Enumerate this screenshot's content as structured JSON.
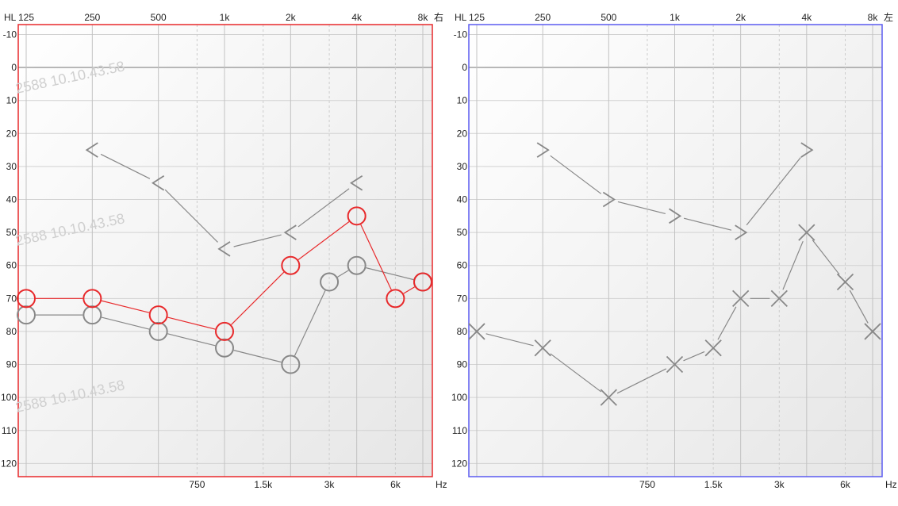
{
  "chart_data": [
    {
      "type": "line",
      "side_label": "右",
      "frame_color": "#e8292b",
      "y_axis_label": "HL",
      "x_unit": "Hz",
      "top_ticks": [
        125,
        250,
        500,
        1000,
        2000,
        4000,
        8000
      ],
      "top_tick_labels": [
        "125",
        "250",
        "500",
        "1k",
        "2k",
        "4k",
        "8k"
      ],
      "bottom_ticks": [
        750,
        1500,
        3000,
        6000
      ],
      "bottom_tick_labels": [
        "750",
        "1.5k",
        "3k",
        "6k"
      ],
      "y_ticks": [
        -10,
        0,
        10,
        20,
        30,
        40,
        50,
        60,
        70,
        80,
        90,
        100,
        110,
        120
      ],
      "y_tick_labels": [
        "-10",
        "0",
        "10",
        "20",
        "30",
        "40",
        "50",
        "60",
        "70",
        "80",
        "90",
        "100",
        "110",
        "120"
      ],
      "ylim": [
        -13,
        124
      ],
      "y_inverted": true,
      "watermark": "2588 10.10.43.58",
      "series": [
        {
          "marker": "bone-right",
          "color": "#888888",
          "points": [
            [
              250,
              25
            ],
            [
              500,
              35
            ],
            [
              1000,
              55
            ],
            [
              2000,
              50
            ],
            [
              4000,
              35
            ]
          ]
        },
        {
          "marker": "circle",
          "color": "#888888",
          "points": [
            [
              125,
              75
            ],
            [
              250,
              75
            ],
            [
              500,
              80
            ],
            [
              1000,
              85
            ],
            [
              2000,
              90
            ],
            [
              3000,
              65
            ],
            [
              4000,
              60
            ],
            [
              8000,
              65
            ]
          ]
        },
        {
          "marker": "circle",
          "color": "#e8292b",
          "points": [
            [
              125,
              70
            ],
            [
              250,
              70
            ],
            [
              500,
              75
            ],
            [
              1000,
              80
            ],
            [
              2000,
              60
            ],
            [
              4000,
              45
            ],
            [
              6000,
              70
            ],
            [
              8000,
              65
            ]
          ]
        }
      ]
    },
    {
      "type": "line",
      "side_label": "左",
      "frame_color": "#5b5bf0",
      "y_axis_label": "HL",
      "x_unit": "Hz",
      "top_ticks": [
        125,
        250,
        500,
        1000,
        2000,
        4000,
        8000
      ],
      "top_tick_labels": [
        "125",
        "250",
        "500",
        "1k",
        "2k",
        "4k",
        "8k"
      ],
      "bottom_ticks": [
        750,
        1500,
        3000,
        6000
      ],
      "bottom_tick_labels": [
        "750",
        "1.5k",
        "3k",
        "6k"
      ],
      "y_ticks": [
        -10,
        0,
        10,
        20,
        30,
        40,
        50,
        60,
        70,
        80,
        90,
        100,
        110,
        120
      ],
      "y_tick_labels": [
        "-10",
        "0",
        "10",
        "20",
        "30",
        "40",
        "50",
        "60",
        "70",
        "80",
        "90",
        "100",
        "110",
        "120"
      ],
      "ylim": [
        -13,
        124
      ],
      "y_inverted": true,
      "series": [
        {
          "marker": "bone-left",
          "color": "#888888",
          "points": [
            [
              250,
              25
            ],
            [
              500,
              40
            ],
            [
              1000,
              45
            ],
            [
              2000,
              50
            ],
            [
              4000,
              25
            ]
          ]
        },
        {
          "marker": "x",
          "color": "#888888",
          "points": [
            [
              125,
              80
            ],
            [
              250,
              85
            ],
            [
              500,
              100
            ],
            [
              1000,
              90
            ],
            [
              1500,
              85
            ],
            [
              2000,
              70
            ],
            [
              3000,
              70
            ],
            [
              4000,
              50
            ],
            [
              6000,
              65
            ],
            [
              8000,
              80
            ]
          ]
        }
      ]
    }
  ]
}
